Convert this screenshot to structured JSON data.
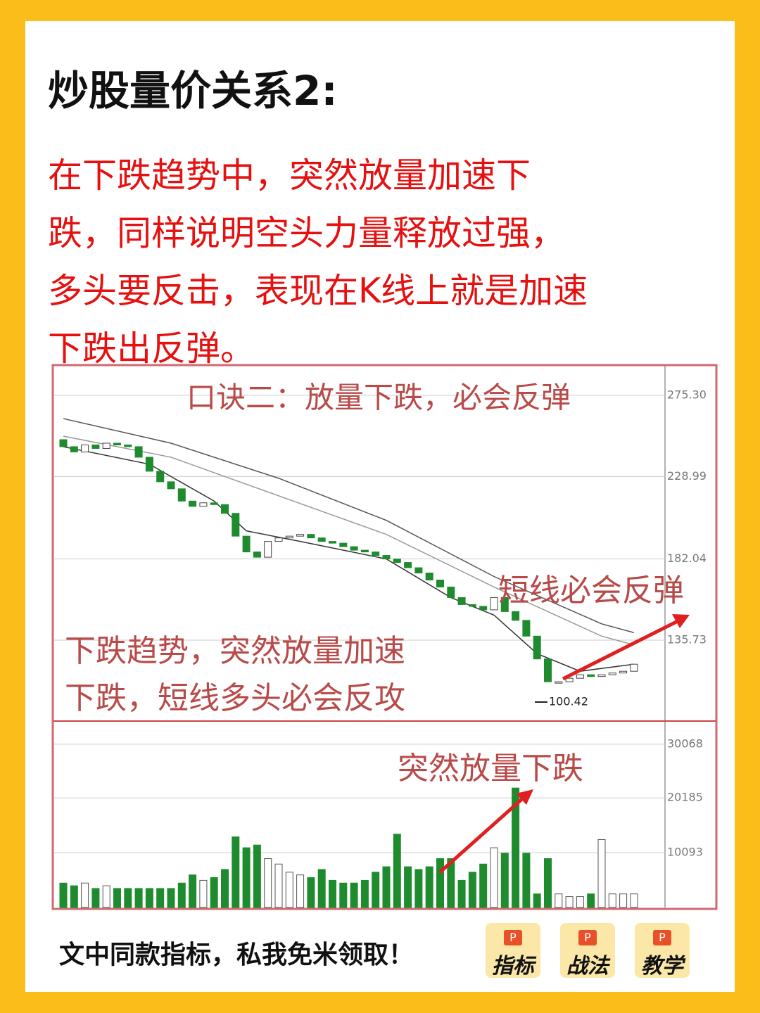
{
  "header": {
    "title": "炒股量价关系2:",
    "body": [
      "在下跌趋势中，突然放量加速下",
      "跌，同样说明空头力量释放过强，",
      "多头要反击，表现在K线上就是加速",
      "下跌出反弹。"
    ]
  },
  "chart_data": {
    "type": "candlestick",
    "title": "口诀二：放量下跌，必会反弹",
    "annotations": [
      "短线必会反弹",
      "下跌趋势，突然放量加速",
      "下跌，短线多头必会反攻",
      "突然放量下跌"
    ],
    "low": 100.42,
    "open": [
      250,
      246,
      243,
      247,
      245,
      248,
      247,
      246,
      240,
      232,
      226,
      222,
      215,
      212,
      214,
      213,
      208,
      195,
      186,
      183,
      192,
      194,
      195,
      196,
      194,
      192,
      191,
      189,
      187,
      186,
      184,
      182,
      180,
      177,
      174,
      170,
      166,
      160,
      156,
      155,
      153,
      160,
      152,
      147,
      138,
      125,
      112,
      112,
      114,
      116,
      115,
      116,
      117,
      118
    ],
    "close": [
      246,
      243,
      247,
      245,
      248,
      247,
      246,
      240,
      232,
      226,
      222,
      215,
      212,
      214,
      213,
      208,
      195,
      186,
      183,
      192,
      194,
      195,
      196,
      194,
      192,
      191,
      189,
      187,
      186,
      184,
      182,
      180,
      177,
      174,
      170,
      166,
      160,
      156,
      155,
      153,
      160,
      152,
      147,
      138,
      125,
      112,
      112,
      114,
      116,
      115,
      116,
      117,
      118,
      122
    ],
    "volume": [
      4500,
      4000,
      4500,
      3500,
      4000,
      3500,
      3500,
      3500,
      3500,
      3500,
      3500,
      4500,
      6000,
      5000,
      5500,
      7000,
      13000,
      11000,
      11500,
      9000,
      8000,
      6500,
      6000,
      5500,
      7000,
      5000,
      4500,
      4500,
      5000,
      6500,
      7500,
      13500,
      7500,
      7000,
      7500,
      9000,
      9000,
      5000,
      6500,
      8000,
      11000,
      10000,
      22000,
      10000,
      2500,
      9000,
      2500,
      2000,
      2000,
      2500,
      12500,
      2500,
      2500,
      2500
    ],
    "up_color": "#ffffff",
    "down_color": "#1e8c2e",
    "ma": [
      {
        "color": "#555555",
        "x": [
          0,
          10,
          20,
          30,
          40,
          50,
          53
        ],
        "values": [
          262,
          248,
          228,
          204,
          172,
          145,
          140
        ]
      },
      {
        "color": "#999999",
        "x": [
          0,
          10,
          20,
          30,
          40,
          50,
          53
        ],
        "values": [
          252,
          240,
          218,
          196,
          166,
          138,
          133
        ]
      },
      {
        "color": "#333333",
        "x": [
          0,
          8,
          14,
          17,
          22,
          30,
          36,
          40,
          44,
          48,
          53
        ],
        "values": [
          246,
          236,
          215,
          198,
          192,
          182,
          160,
          150,
          128,
          118,
          122
        ]
      }
    ],
    "ylim": [
      89.6,
      292.1
    ],
    "yticks": [
      {
        "value": 275.3,
        "label": "275.30"
      },
      228.99,
      182.04,
      135.73
    ],
    "vol_ylim": [
      0,
      34330
    ],
    "vol_yticks": [
      30068,
      20185,
      10093
    ],
    "grid": true
  },
  "footer": {
    "text": "文中同款指标，私我免米领取！",
    "buttons": [
      {
        "icon": "P",
        "label": "指标"
      },
      {
        "icon": "P",
        "label": "战法"
      },
      {
        "icon": "P",
        "label": "教学"
      }
    ]
  }
}
